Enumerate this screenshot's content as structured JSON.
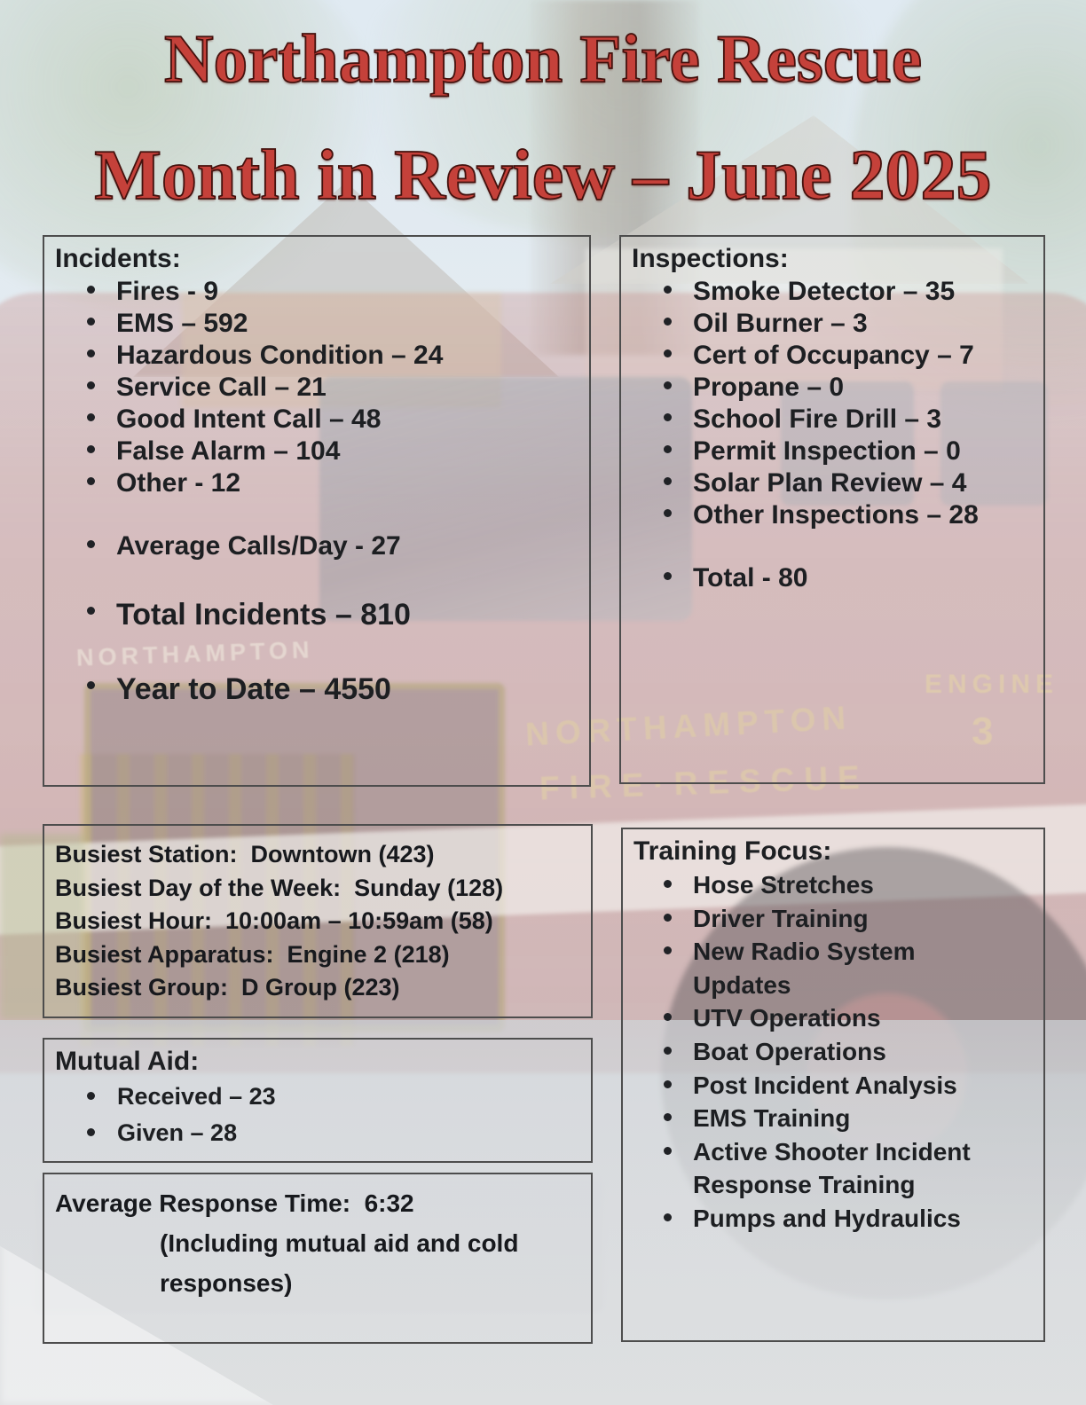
{
  "title": "Northampton Fire Rescue",
  "subtitle": "Month in Review – June 2025",
  "incidents": {
    "heading": "Incidents:",
    "items": [
      "Fires - 9",
      "EMS – 592",
      "Hazardous Condition – 24",
      "Service Call – 21",
      "Good Intent Call – 48",
      "False Alarm – 104",
      "Other - 12"
    ],
    "average": "Average Calls/Day - 27",
    "total": "Total Incidents – 810",
    "year_to_date": "Year to Date – 4550"
  },
  "inspections": {
    "heading": "Inspections:",
    "items": [
      "Smoke Detector – 35",
      "Oil Burner – 3",
      "Cert of Occupancy – 7",
      "Propane – 0",
      "School Fire Drill – 3",
      "Permit Inspection – 0",
      "Solar Plan Review – 4",
      "Other Inspections – 28"
    ],
    "total": "Total - 80"
  },
  "busiest": {
    "lines": [
      "Busiest Station:  Downtown (423)",
      "Busiest Day of the Week:  Sunday (128)",
      "Busiest Hour:  10:00am – 10:59am (58)",
      "Busiest Apparatus:  Engine 2 (218)",
      "Busiest Group:  D Group (223)"
    ]
  },
  "mutual_aid": {
    "heading": "Mutual Aid:",
    "items": [
      "Received – 23",
      "Given – 28"
    ]
  },
  "response_time": {
    "line1": "Average Response Time:  6:32",
    "detail": "(Including mutual aid and cold responses)"
  },
  "training": {
    "heading": "Training Focus:",
    "items": [
      "Hose Stretches",
      "Driver Training",
      "New Radio System Updates",
      "UTV Operations",
      "Boat Operations",
      "Post Incident Analysis",
      "EMS Training",
      "Active Shooter Incident Response Training",
      "Pumps and Hydraulics"
    ]
  },
  "background": {
    "hood_lettering": "NORTHAMPTON",
    "side_lettering_top": "NORTHAMPTON",
    "side_lettering_bottom": "FIRE·RESCUE",
    "engine_lettering": "ENGINE",
    "engine_number": "3"
  },
  "colors": {
    "title_red": "#c5413a",
    "title_outline": "#44110d",
    "text_dark": "#1d1f22",
    "panel_border": "#4d4d4d"
  }
}
